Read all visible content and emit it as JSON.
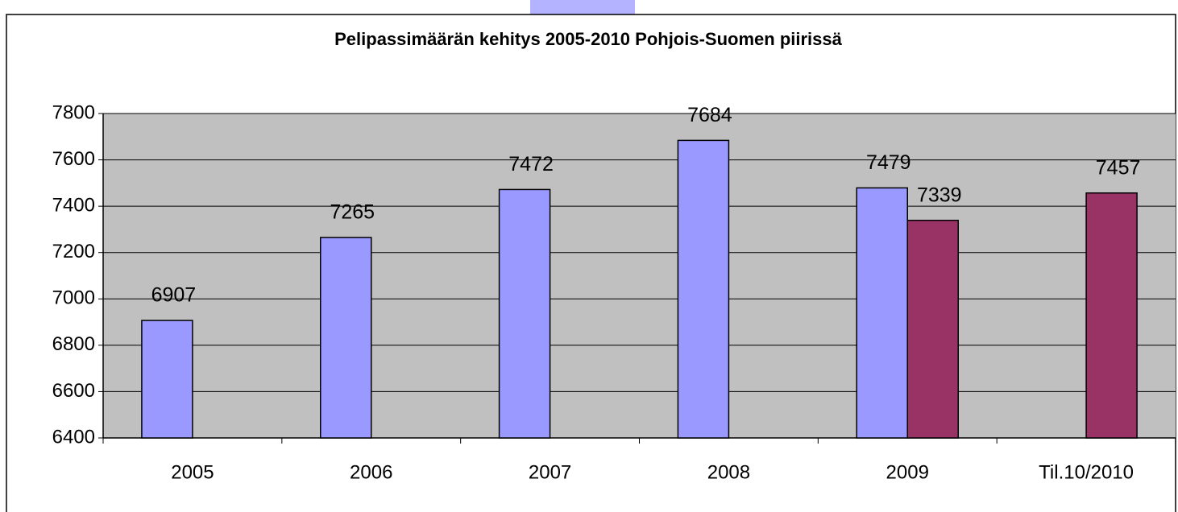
{
  "chart_data": {
    "type": "bar",
    "title": "Pelipassimäärän kehitys 2005-2010 Pohjois-Suomen piirissä",
    "categories": [
      "2005",
      "2006",
      "2007",
      "2008",
      "2009",
      "Til.10/2010"
    ],
    "series": [
      {
        "color": "#9999ff",
        "values": [
          6907,
          7265,
          7472,
          7684,
          7479,
          null
        ]
      },
      {
        "color": "#993366",
        "values": [
          null,
          null,
          null,
          null,
          7339,
          7457
        ]
      }
    ],
    "ylim": [
      6400,
      7800
    ],
    "yticks": [
      6400,
      6600,
      6800,
      7000,
      7200,
      7400,
      7600,
      7800
    ],
    "grid": true
  }
}
